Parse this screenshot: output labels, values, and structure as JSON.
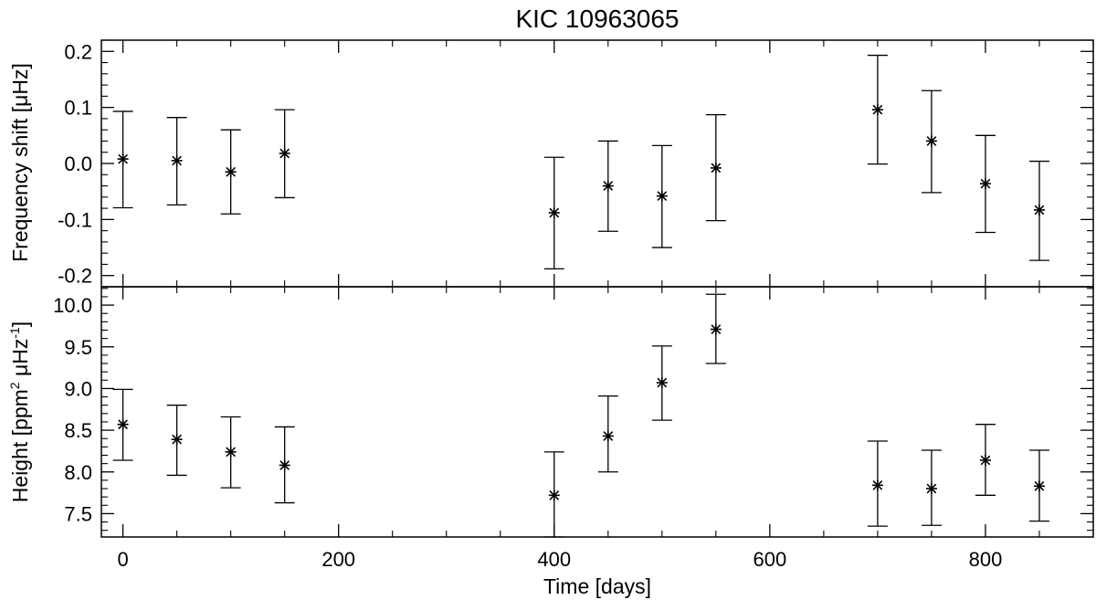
{
  "chart_data": {
    "title": "KIC 10963065",
    "xlabel": "Time [days]",
    "xlim": [
      -20,
      900
    ],
    "x_ticks": [
      0,
      200,
      400,
      600,
      800
    ],
    "x_ticklabels": [
      "0",
      "200",
      "400",
      "600",
      "800"
    ],
    "panels": [
      {
        "type": "scatter",
        "ylabel": "Frequency shift [μHz]",
        "ylim": [
          -0.22,
          0.22
        ],
        "y_ticks": [
          -0.2,
          -0.1,
          0.0,
          0.1,
          0.2
        ],
        "y_ticklabels": [
          "-0.2",
          "-0.1",
          "0.0",
          "0.1",
          "0.2"
        ],
        "x": [
          0,
          50,
          100,
          150,
          400,
          450,
          500,
          550,
          700,
          750,
          800,
          850
        ],
        "y": [
          0.008,
          0.005,
          -0.015,
          0.018,
          -0.088,
          -0.04,
          -0.058,
          -0.008,
          0.096,
          0.04,
          -0.036,
          -0.083
        ],
        "err_low": [
          -0.079,
          -0.074,
          -0.09,
          -0.061,
          -0.188,
          -0.121,
          -0.15,
          -0.102,
          -0.001,
          -0.052,
          -0.123,
          -0.173
        ],
        "err_high": [
          0.093,
          0.082,
          0.06,
          0.096,
          0.011,
          0.04,
          0.032,
          0.087,
          0.193,
          0.13,
          0.05,
          0.004
        ]
      },
      {
        "type": "scatter",
        "ylabel_main": "Height [ppm",
        "ylabel_sup1": "2",
        "ylabel_mid": " μHz",
        "ylabel_sup2": "-1",
        "ylabel_end": "]",
        "ylim": [
          7.22,
          10.22
        ],
        "y_ticks": [
          7.5,
          8.0,
          8.5,
          9.0,
          9.5,
          10.0
        ],
        "y_ticklabels": [
          "7.5",
          "8.0",
          "8.5",
          "9.0",
          "9.5",
          "10.0"
        ],
        "x": [
          0,
          50,
          100,
          150,
          400,
          450,
          500,
          550,
          700,
          750,
          800,
          850
        ],
        "y": [
          8.57,
          8.39,
          8.24,
          8.08,
          7.72,
          8.43,
          9.07,
          9.71,
          7.84,
          7.8,
          8.14,
          7.83
        ],
        "err_low": [
          8.14,
          7.96,
          7.81,
          7.63,
          7.22,
          8.0,
          8.62,
          9.3,
          7.35,
          7.36,
          7.72,
          7.41
        ],
        "err_high": [
          8.99,
          8.8,
          8.66,
          8.54,
          8.24,
          8.91,
          9.51,
          10.13,
          8.37,
          8.26,
          8.57,
          8.26
        ]
      }
    ]
  }
}
